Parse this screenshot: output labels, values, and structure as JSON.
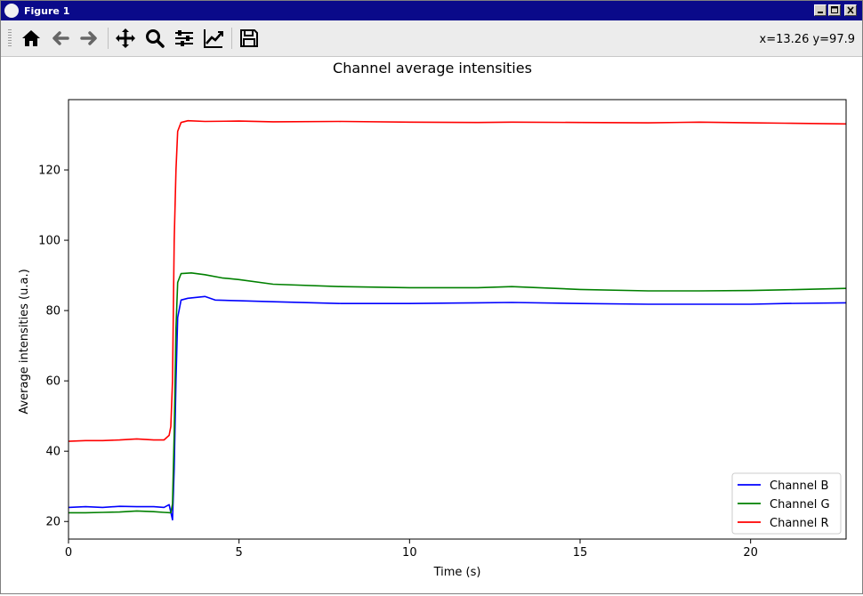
{
  "window": {
    "title": "Figure 1"
  },
  "toolbar": {
    "buttons": [
      "home-icon",
      "back-icon",
      "forward-icon",
      "pan-icon",
      "zoom-icon",
      "subplots-icon",
      "edit-axes-icon",
      "save-icon"
    ],
    "coords": "x=13.26 y=97.9"
  },
  "chart_data": {
    "type": "line",
    "title": "Channel average intensities",
    "xlabel": "Time (s)",
    "ylabel": "Average intensities (u.a.)",
    "xlim": [
      0,
      22.8
    ],
    "ylim": [
      15,
      140
    ],
    "xticks": [
      0,
      5,
      10,
      15,
      20
    ],
    "yticks": [
      20,
      40,
      60,
      80,
      100,
      120
    ],
    "grid": false,
    "legend_position": "bottom-right",
    "series": [
      {
        "name": "Channel B",
        "color": "#0000ff",
        "x": [
          0,
          0.5,
          1,
          1.5,
          2,
          2.5,
          2.8,
          2.95,
          3.05,
          3.1,
          3.15,
          3.2,
          3.3,
          3.5,
          4,
          4.3,
          5,
          6,
          8,
          10,
          12,
          13,
          15,
          17,
          18.5,
          20,
          21,
          22.8
        ],
        "y": [
          24,
          24.2,
          24,
          24.3,
          24.2,
          24.2,
          24,
          24.8,
          20.5,
          35,
          60,
          78,
          83,
          83.5,
          84,
          83,
          82.8,
          82.5,
          82,
          82,
          82.2,
          82.3,
          82,
          81.8,
          81.8,
          81.8,
          82,
          82.2
        ]
      },
      {
        "name": "Channel G",
        "color": "#008000",
        "x": [
          0,
          0.5,
          1,
          1.5,
          2,
          2.5,
          2.8,
          3.0,
          3.05,
          3.1,
          3.15,
          3.2,
          3.3,
          3.6,
          4,
          4.5,
          5,
          6,
          8,
          10,
          12,
          13,
          15,
          17,
          18.5,
          20,
          21,
          22.8
        ],
        "y": [
          22.5,
          22.5,
          22.6,
          22.7,
          23,
          22.8,
          22.6,
          22.5,
          25,
          45,
          75,
          88,
          90.5,
          90.7,
          90.2,
          89.3,
          88.8,
          87.5,
          86.8,
          86.5,
          86.5,
          86.8,
          86,
          85.6,
          85.6,
          85.7,
          85.9,
          86.3
        ]
      },
      {
        "name": "Channel R",
        "color": "#ff0000",
        "x": [
          0,
          0.5,
          1,
          1.5,
          2,
          2.5,
          2.8,
          2.95,
          3.0,
          3.05,
          3.1,
          3.15,
          3.2,
          3.3,
          3.5,
          4,
          5,
          6,
          8,
          10,
          12,
          13,
          15,
          17,
          18.5,
          20,
          21,
          22.8
        ],
        "y": [
          42.8,
          43,
          43,
          43.2,
          43.5,
          43.2,
          43.2,
          44.5,
          47,
          60,
          100,
          120,
          131,
          133.5,
          134,
          133.8,
          133.9,
          133.7,
          133.8,
          133.6,
          133.5,
          133.6,
          133.5,
          133.4,
          133.6,
          133.4,
          133.3,
          133.1
        ]
      }
    ]
  }
}
